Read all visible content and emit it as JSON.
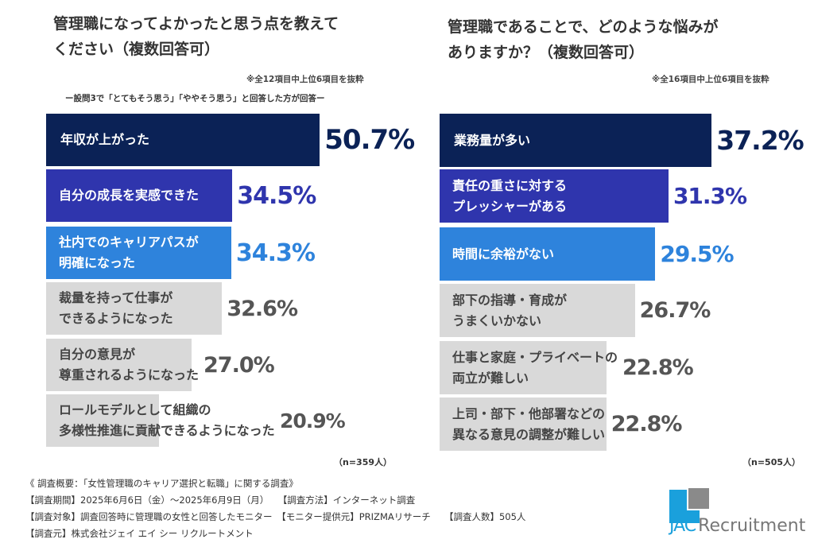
{
  "charts": [
    {
      "title": "管理職になってよかったと思う点を教えて\nください（複数回答可）",
      "note": "※全12項目中上位6項目を抜粋",
      "subnote": "ー設問3で「とてもそう思う」「ややそう思う」と回答した方が回答ー",
      "n_label": "（n=359人）",
      "chart_data": {
        "type": "bar",
        "orientation": "horizontal",
        "categories": [
          "年収が上がった",
          "自分の成長を実感できた",
          "社内でのキャリアパスが\n明確になった",
          "裁量を持って仕事が\nできるようになった",
          "自分の意見が\n尊重されるようになった",
          "ロールモデルとして組織の\n多様性推進に貢献できるようになった"
        ],
        "values": [
          50.7,
          34.5,
          34.3,
          32.6,
          27.0,
          20.9
        ],
        "value_labels": [
          "50.7%",
          "34.5%",
          "34.3%",
          "32.6%",
          "27.0%",
          "20.9%"
        ],
        "unit": "%",
        "colors": [
          "#0b2256",
          "#2f35ad",
          "#2e83dc",
          "#d9d9d9",
          "#d9d9d9",
          "#d9d9d9"
        ]
      }
    },
    {
      "title": "管理職であることで、どのような悩みが\nありますか？（複数回答可）",
      "note": "※全16項目中上位6項目を抜粋",
      "n_label": "（n=505人）",
      "chart_data": {
        "type": "bar",
        "orientation": "horizontal",
        "categories": [
          "業務量が多い",
          "責任の重さに対する\nプレッシャーがある",
          "時間に余裕がない",
          "部下の指導・育成が\nうまくいかない",
          "仕事と家庭・プライベートの\n両立が難しい",
          "上司・部下・他部署などの\n異なる意見の調整が難しい"
        ],
        "values": [
          37.2,
          31.3,
          29.5,
          26.7,
          22.8,
          22.8
        ],
        "value_labels": [
          "37.2%",
          "31.3%",
          "29.5%",
          "26.7%",
          "22.8%",
          "22.8%"
        ],
        "unit": "%",
        "colors": [
          "#0b2256",
          "#2f35ad",
          "#2e83dc",
          "#d9d9d9",
          "#d9d9d9",
          "#d9d9d9"
        ]
      }
    }
  ],
  "text_colors": {
    "on_color": "#ffffff",
    "on_gray": "#444444",
    "gray_value": "#555555"
  },
  "footer": [
    "《 調査概要：「女性管理職のキャリア選択と転職」に関する調査》",
    "【調査期間】2025年6月6日（金）～2025年6月9日（月）　　【調査方法】インターネット調査",
    "【調査対象】調査回答時に管理職の女性と回答したモニター　【モニター提供元】PRIZMAリサーチ　　【調査人数】505人",
    "【調査元】株式会社ジェイ エイ シー リクルートメント"
  ],
  "logo": {
    "text_jac": "JAC",
    "text_rest": "Recruitment",
    "colors": {
      "blue": "#1aa0dc",
      "gray": "#8a8a8a"
    }
  }
}
